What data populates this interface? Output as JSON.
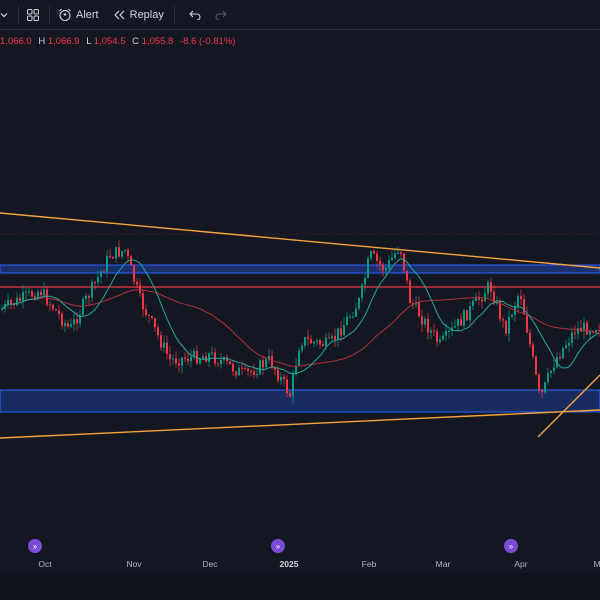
{
  "toolbar": {
    "alert_label": "Alert",
    "replay_label": "Replay",
    "icons": [
      "chevron-down-icon",
      "grid-icon",
      "alarm-clock-icon",
      "replay-icon",
      "undo-icon",
      "redo-icon"
    ]
  },
  "ohlc": {
    "open_value": "1,066.0",
    "high_label": "H",
    "high_value": "1,066.9",
    "low_label": "L",
    "low_value": "1,054.5",
    "close_label": "C",
    "close_value": "1,055.8",
    "change": "-8.6 (-0.81%)"
  },
  "time_axis": {
    "labels": [
      "Oct",
      "Nov",
      "Dec",
      "2025",
      "Feb",
      "Mar",
      "Apr",
      "M"
    ],
    "bold_label": "2025"
  },
  "colors": {
    "background": "#131722",
    "up_candle": "#089981",
    "down_candle": "#f23645",
    "trendline": "#f7a33b",
    "zone_fill": "#1e3a8a",
    "zone_border": "#2962ff",
    "resistance": "#f23645",
    "ma_fast": "#26a69a",
    "ma_slow": "#b2303a",
    "event_marker": "#7b4bd6"
  }
}
